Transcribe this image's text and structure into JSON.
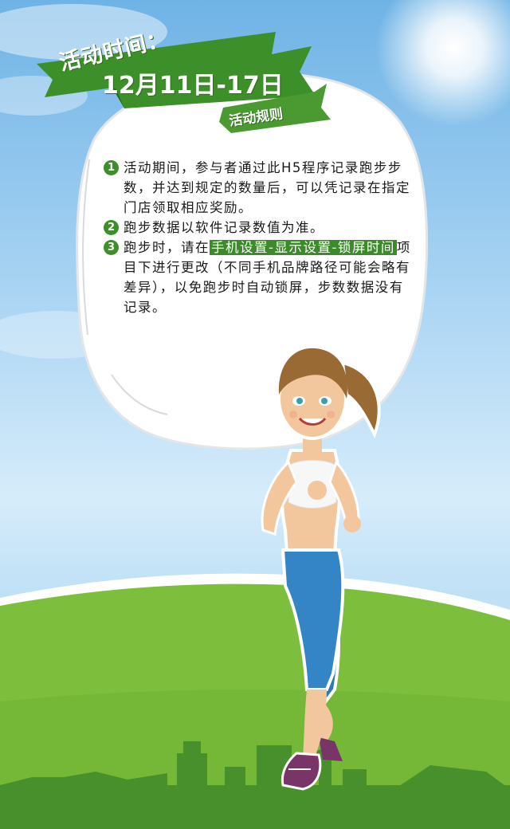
{
  "header": {
    "line1": "活动时间：",
    "line2": "12月11日-17日",
    "rules_tag": "活动规则"
  },
  "rules": [
    {
      "num": "1",
      "text": "活动期间，参与者通过此H5程序记录跑步步数，并达到规定的数量后，可以凭记录在指定门店领取相应奖励。"
    },
    {
      "num": "2",
      "text": "跑步数据以软件记录数值为准。"
    },
    {
      "num": "3",
      "before": "跑步时，请在",
      "highlight": "手机设置-显示设置-锁屏时间",
      "after": "项目下进行更改（不同手机品牌路径可能会略有差异），以免跑步时自动锁屏，步数数据没有记录。"
    }
  ],
  "colors": {
    "green": "#3d8f2a",
    "sky": "#a9d4f3",
    "grass": "#7dbf3c"
  },
  "icons": [
    "runner-illustration",
    "city-skyline"
  ]
}
